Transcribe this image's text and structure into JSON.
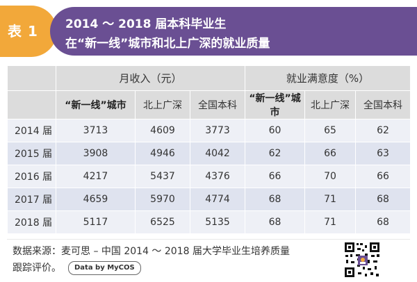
{
  "header": {
    "badge_label": "表 1",
    "title_line1": "2014 ～ 2018 届本科毕业生",
    "title_line2": "在“新一线”城市和北上广深的就业质量"
  },
  "table": {
    "group_headers": [
      "月收入（元）",
      "就业满意度（%）"
    ],
    "sub_headers": [
      "“新一线”城市",
      "北上广深",
      "全国本科",
      "“新一线”城市",
      "北上广深",
      "全国本科"
    ],
    "rows": [
      {
        "year": "2014 届",
        "cells": [
          "3713",
          "4609",
          "3773",
          "60",
          "65",
          "62"
        ]
      },
      {
        "year": "2015 届",
        "cells": [
          "3908",
          "4946",
          "4042",
          "62",
          "66",
          "63"
        ]
      },
      {
        "year": "2016 届",
        "cells": [
          "4217",
          "5437",
          "4376",
          "66",
          "70",
          "66"
        ]
      },
      {
        "year": "2017 届",
        "cells": [
          "4659",
          "5970",
          "4774",
          "68",
          "71",
          "68"
        ]
      },
      {
        "year": "2018 届",
        "cells": [
          "5117",
          "6525",
          "5135",
          "68",
          "71",
          "68"
        ]
      }
    ]
  },
  "footer": {
    "source_line1": "数据来源：麦可思 – 中国 2014 ～ 2018 届大学毕业生培养质量",
    "source_line2": "跟踪评价。",
    "mycos_badge": "Data by MyCOS"
  },
  "colors": {
    "badge_orange": "#f2a83a",
    "title_purple": "#6a4f93",
    "header_gray": "#dcdcdc",
    "row_light": "#eef0f6",
    "row_dark": "#dfe3ef"
  }
}
